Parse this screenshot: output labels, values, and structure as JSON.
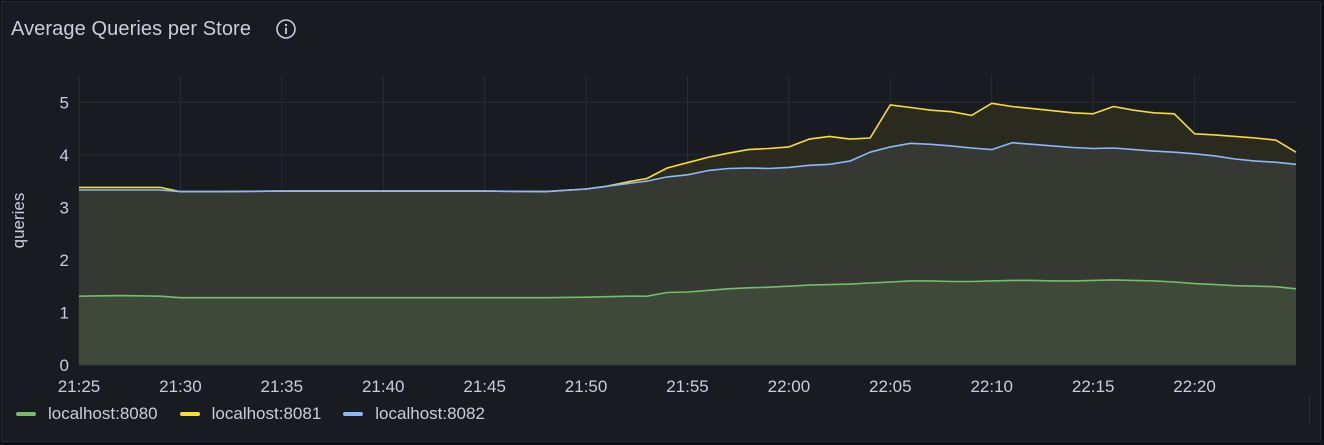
{
  "panel": {
    "title": "Average Queries per Store",
    "info_icon": "info-circle-icon"
  },
  "colors": {
    "background": "#181b1f",
    "grid": "#2a2d33",
    "text": "#ccccdc"
  },
  "chart_data": {
    "type": "area",
    "title": "Average Queries per Store",
    "xlabel": "",
    "ylabel": "queries",
    "ylim": [
      0,
      5.5
    ],
    "yticks": [
      0,
      1,
      2,
      3,
      4,
      5
    ],
    "xlim": [
      "21:25",
      "22:25"
    ],
    "xticks": [
      "21:25",
      "21:30",
      "21:35",
      "21:40",
      "21:45",
      "21:50",
      "21:55",
      "22:00",
      "22:05",
      "22:10",
      "22:15",
      "22:20"
    ],
    "grid": true,
    "legend_position": "bottom-left",
    "x": [
      "21:25",
      "21:27",
      "21:29",
      "21:30",
      "21:32",
      "21:35",
      "21:40",
      "21:45",
      "21:48",
      "21:50",
      "21:51",
      "21:52",
      "21:53",
      "21:54",
      "21:55",
      "21:56",
      "21:57",
      "21:58",
      "21:59",
      "22:00",
      "22:01",
      "22:02",
      "22:03",
      "22:04",
      "22:05",
      "22:06",
      "22:07",
      "22:08",
      "22:09",
      "22:10",
      "22:11",
      "22:12",
      "22:13",
      "22:14",
      "22:15",
      "22:16",
      "22:17",
      "22:18",
      "22:19",
      "22:20",
      "22:21",
      "22:22",
      "22:23",
      "22:24",
      "22:25"
    ],
    "series": [
      {
        "name": "localhost:8080",
        "color": "#73bf69",
        "fill": "#3f4a3a",
        "values": [
          1.31,
          1.32,
          1.31,
          1.28,
          1.28,
          1.28,
          1.28,
          1.28,
          1.28,
          1.29,
          1.3,
          1.31,
          1.31,
          1.38,
          1.39,
          1.42,
          1.45,
          1.47,
          1.48,
          1.5,
          1.52,
          1.53,
          1.54,
          1.56,
          1.58,
          1.6,
          1.6,
          1.59,
          1.59,
          1.6,
          1.61,
          1.61,
          1.6,
          1.6,
          1.61,
          1.62,
          1.61,
          1.6,
          1.58,
          1.55,
          1.53,
          1.51,
          1.5,
          1.49,
          1.45
        ]
      },
      {
        "name": "localhost:8081",
        "color": "#fade2a",
        "fill": "#2c2b1f",
        "values": [
          3.38,
          3.38,
          3.38,
          3.3,
          3.3,
          3.31,
          3.31,
          3.31,
          3.3,
          3.35,
          3.4,
          3.48,
          3.55,
          3.75,
          3.85,
          3.95,
          4.03,
          4.1,
          4.12,
          4.15,
          4.3,
          4.35,
          4.3,
          4.32,
          4.95,
          4.9,
          4.85,
          4.82,
          4.75,
          4.98,
          4.92,
          4.88,
          4.84,
          4.8,
          4.78,
          4.92,
          4.85,
          4.8,
          4.78,
          4.4,
          4.38,
          4.35,
          4.32,
          4.28,
          4.05
        ]
      },
      {
        "name": "localhost:8082",
        "color": "#8ab8ff",
        "fill": "#363a33",
        "values": [
          3.33,
          3.33,
          3.33,
          3.3,
          3.3,
          3.31,
          3.31,
          3.31,
          3.3,
          3.35,
          3.4,
          3.45,
          3.5,
          3.58,
          3.62,
          3.7,
          3.74,
          3.75,
          3.74,
          3.76,
          3.8,
          3.82,
          3.88,
          4.05,
          4.15,
          4.22,
          4.2,
          4.17,
          4.13,
          4.1,
          4.23,
          4.2,
          4.17,
          4.14,
          4.12,
          4.13,
          4.1,
          4.07,
          4.05,
          4.02,
          3.98,
          3.92,
          3.88,
          3.86,
          3.82
        ]
      }
    ]
  }
}
